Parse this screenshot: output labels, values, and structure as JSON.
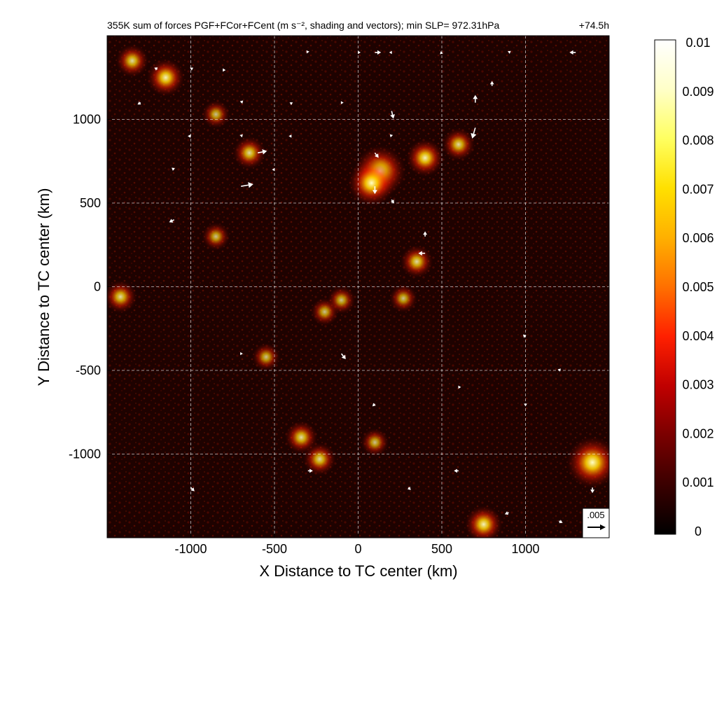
{
  "chart_data": {
    "type": "heatmap",
    "title": "355K sum of forces PGF+FCor+FCent (m s⁻², shading and vectors); min SLP= 972.31hPa",
    "time_label": "+74.5h",
    "xlabel": "X Distance to TC center (km)",
    "ylabel": "Y Distance to TC center (km)",
    "xlim": [
      -1500,
      1500
    ],
    "ylim": [
      -1500,
      1500
    ],
    "x_ticks": [
      -1000,
      -500,
      0,
      500,
      1000
    ],
    "x_tick_labels": [
      "-1000",
      "-500",
      "0",
      "500",
      "1000"
    ],
    "y_ticks": [
      -1000,
      -500,
      0,
      500,
      1000
    ],
    "y_tick_labels": [
      "-1000",
      "-500",
      "0",
      "500",
      "1000"
    ],
    "grid": true,
    "colorbar": {
      "range": [
        0,
        0.01
      ],
      "ticks": [
        0,
        0.001,
        0.002,
        0.003,
        0.004,
        0.005,
        0.006,
        0.007,
        0.008,
        0.009,
        0.01
      ],
      "tick_labels": [
        "0",
        "0.001",
        "0.002",
        "0.003",
        "0.004",
        "0.005",
        "0.006",
        "0.007",
        "0.008",
        "0.009",
        "0.01"
      ],
      "colormap": [
        "#000000",
        "#3a0000",
        "#7a0000",
        "#c00000",
        "#ff2000",
        "#ff7000",
        "#ffb000",
        "#ffe000",
        "#ffff60",
        "#ffffc8",
        "#ffffff"
      ]
    },
    "reference_vector": {
      "label": ".005",
      "magnitude": 0.005
    },
    "hotspots": [
      {
        "x": 130,
        "y": 690,
        "value": 0.008
      },
      {
        "x": 80,
        "y": 620,
        "value": 0.007
      },
      {
        "x": 400,
        "y": 770,
        "value": 0.005
      },
      {
        "x": 600,
        "y": 850,
        "value": 0.004
      },
      {
        "x": 350,
        "y": 150,
        "value": 0.004
      },
      {
        "x": -650,
        "y": 800,
        "value": 0.004
      },
      {
        "x": -850,
        "y": 1030,
        "value": 0.003
      },
      {
        "x": -1150,
        "y": 1250,
        "value": 0.005
      },
      {
        "x": -1350,
        "y": 1350,
        "value": 0.004
      },
      {
        "x": 1400,
        "y": -1050,
        "value": 0.008
      },
      {
        "x": 750,
        "y": -1420,
        "value": 0.005
      },
      {
        "x": -340,
        "y": -900,
        "value": 0.004
      },
      {
        "x": -230,
        "y": -1030,
        "value": 0.004
      },
      {
        "x": -1420,
        "y": -60,
        "value": 0.004
      },
      {
        "x": 270,
        "y": -70,
        "value": 0.003
      },
      {
        "x": -200,
        "y": -150,
        "value": 0.003
      },
      {
        "x": -100,
        "y": -80,
        "value": 0.003
      },
      {
        "x": -850,
        "y": 300,
        "value": 0.003
      },
      {
        "x": -550,
        "y": -420,
        "value": 0.003
      },
      {
        "x": 100,
        "y": -930,
        "value": 0.003
      }
    ],
    "vectors": [
      {
        "x": -1200,
        "y": 1300,
        "u": -0.001,
        "v": 0.0005
      },
      {
        "x": -1000,
        "y": 1300,
        "u": 0.0008,
        "v": 0.0005
      },
      {
        "x": -800,
        "y": 1300,
        "u": -0.0005,
        "v": -0.0008
      },
      {
        "x": -300,
        "y": 1400,
        "u": -0.0005,
        "v": 0.0007
      },
      {
        "x": 0,
        "y": 1400,
        "u": 0.0008,
        "v": 0.0
      },
      {
        "x": 100,
        "y": 1400,
        "u": 0.002,
        "v": 0.0
      },
      {
        "x": 200,
        "y": 1400,
        "u": -0.0008,
        "v": 0.0
      },
      {
        "x": 500,
        "y": 1400,
        "u": -0.0006,
        "v": -0.0006
      },
      {
        "x": 900,
        "y": 1400,
        "u": 0.0007,
        "v": 0.0005
      },
      {
        "x": 1300,
        "y": 1400,
        "u": -0.002,
        "v": 0.0
      },
      {
        "x": -1300,
        "y": 1100,
        "u": -0.001,
        "v": -0.0006
      },
      {
        "x": -700,
        "y": 1100,
        "u": 0.0007,
        "v": 0.0007
      },
      {
        "x": -400,
        "y": 1100,
        "u": 0.0,
        "v": -0.0008
      },
      {
        "x": -100,
        "y": 1100,
        "u": 0.0007,
        "v": 0.0
      },
      {
        "x": 200,
        "y": 1050,
        "u": 0.0006,
        "v": -0.0025
      },
      {
        "x": 700,
        "y": 1100,
        "u": 0.0,
        "v": 0.0025
      },
      {
        "x": 800,
        "y": 1200,
        "u": 0.0,
        "v": 0.0016
      },
      {
        "x": 700,
        "y": 950,
        "u": -0.001,
        "v": -0.0035
      },
      {
        "x": -1000,
        "y": 900,
        "u": -0.001,
        "v": 0.0
      },
      {
        "x": -700,
        "y": 900,
        "u": 0.0006,
        "v": 0.0006
      },
      {
        "x": -400,
        "y": 900,
        "u": -0.0008,
        "v": 0.0
      },
      {
        "x": 200,
        "y": 900,
        "u": -0.0006,
        "v": 0.0006
      },
      {
        "x": -600,
        "y": 800,
        "u": 0.003,
        "v": 0.0006
      },
      {
        "x": 100,
        "y": 800,
        "u": 0.0012,
        "v": -0.0016
      },
      {
        "x": 100,
        "y": 600,
        "u": 0.0,
        "v": -0.0025
      },
      {
        "x": 200,
        "y": 520,
        "u": 0.0008,
        "v": -0.0012
      },
      {
        "x": -700,
        "y": 600,
        "u": 0.004,
        "v": 0.0007
      },
      {
        "x": -1100,
        "y": 700,
        "u": -0.0008,
        "v": 0.0006
      },
      {
        "x": -500,
        "y": 700,
        "u": -0.0008,
        "v": 0.0
      },
      {
        "x": -1100,
        "y": 400,
        "u": -0.0016,
        "v": -0.0008
      },
      {
        "x": 400,
        "y": 200,
        "u": -0.0022,
        "v": 0.0
      },
      {
        "x": 400,
        "y": 300,
        "u": 0.0,
        "v": 0.0017
      },
      {
        "x": -100,
        "y": -400,
        "u": 0.0014,
        "v": -0.0018
      },
      {
        "x": -700,
        "y": -400,
        "u": 0.0006,
        "v": 0.0
      },
      {
        "x": 100,
        "y": -700,
        "u": -0.0008,
        "v": -0.0008
      },
      {
        "x": -300,
        "y": -1100,
        "u": 0.0016,
        "v": 0.0
      },
      {
        "x": -1000,
        "y": -1200,
        "u": 0.0012,
        "v": -0.0012
      },
      {
        "x": 600,
        "y": -1100,
        "u": -0.0015,
        "v": 0.0
      },
      {
        "x": 1400,
        "y": -1200,
        "u": 0.0,
        "v": -0.0018
      },
      {
        "x": 1200,
        "y": -1400,
        "u": 0.0012,
        "v": -0.0006
      },
      {
        "x": 900,
        "y": -1350,
        "u": -0.0013,
        "v": -0.0005
      },
      {
        "x": 300,
        "y": -1200,
        "u": 0.0008,
        "v": -0.0008
      },
      {
        "x": 1000,
        "y": -300,
        "u": -0.0008,
        "v": 0.0008
      },
      {
        "x": 1200,
        "y": -500,
        "u": 0.0006,
        "v": 0.0006
      },
      {
        "x": 1000,
        "y": -700,
        "u": 0.0,
        "v": -0.0008
      },
      {
        "x": 600,
        "y": -600,
        "u": 0.0008,
        "v": 0.0
      }
    ]
  }
}
